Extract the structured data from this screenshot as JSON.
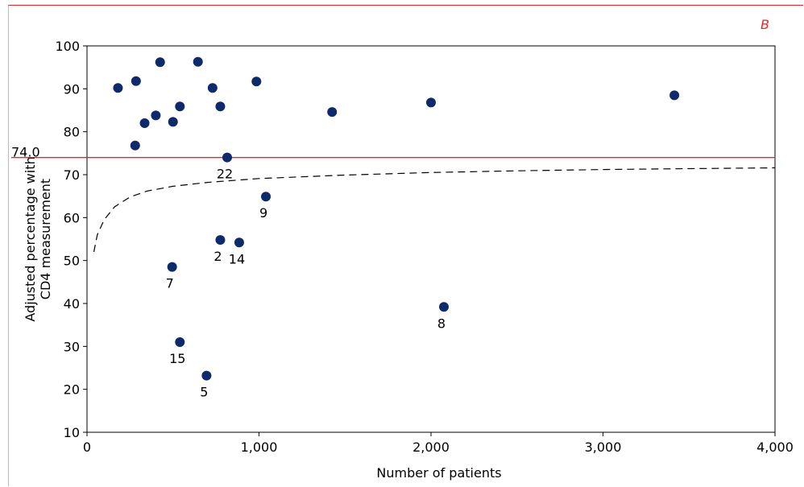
{
  "panel_label": "B",
  "chart_data": {
    "type": "scatter",
    "title": "",
    "xlabel": "Number of patients",
    "ylabel_lines": [
      "Adjusted percentage with",
      "CD4 measurement"
    ],
    "xlim": [
      0,
      4000
    ],
    "ylim": [
      10,
      100
    ],
    "x_ticks": [
      0,
      1000,
      2000,
      3000,
      4000
    ],
    "x_tick_labels": [
      "0",
      "1,000",
      "2,000",
      "3,000",
      "4,000"
    ],
    "y_ticks": [
      10,
      20,
      30,
      40,
      50,
      60,
      70,
      80,
      90,
      100
    ],
    "y_tick_labels": [
      "10",
      "20",
      "30",
      "40",
      "50",
      "60",
      "70",
      "80",
      "90",
      "100"
    ],
    "grid": false,
    "reference_line": {
      "value": 74.0,
      "label": "74.0",
      "color": "#e8262c"
    },
    "threshold_curve": {
      "style": "dashed",
      "x": [
        40,
        60,
        100,
        160,
        250,
        350,
        500,
        700,
        1000,
        1500,
        2000,
        2500,
        3000,
        3500,
        4000
      ],
      "y": [
        52,
        56,
        59.5,
        62.5,
        64.8,
        66.2,
        67.3,
        68.2,
        69.1,
        69.9,
        70.5,
        70.9,
        71.2,
        71.4,
        71.6
      ]
    },
    "point_color": "#0e2a6b",
    "points": [
      {
        "x": 180,
        "y": 90.2,
        "label": ""
      },
      {
        "x": 280,
        "y": 76.8,
        "label": ""
      },
      {
        "x": 285,
        "y": 91.8,
        "label": ""
      },
      {
        "x": 335,
        "y": 82.0,
        "label": ""
      },
      {
        "x": 400,
        "y": 83.8,
        "label": ""
      },
      {
        "x": 425,
        "y": 96.2,
        "label": ""
      },
      {
        "x": 495,
        "y": 48.5,
        "label": "7"
      },
      {
        "x": 500,
        "y": 82.3,
        "label": ""
      },
      {
        "x": 540,
        "y": 31.0,
        "label": "15"
      },
      {
        "x": 540,
        "y": 85.9,
        "label": ""
      },
      {
        "x": 645,
        "y": 96.3,
        "label": ""
      },
      {
        "x": 695,
        "y": 23.2,
        "label": "5"
      },
      {
        "x": 730,
        "y": 90.2,
        "label": ""
      },
      {
        "x": 775,
        "y": 54.8,
        "label": "2"
      },
      {
        "x": 775,
        "y": 85.9,
        "label": ""
      },
      {
        "x": 815,
        "y": 74.0,
        "label": "22"
      },
      {
        "x": 885,
        "y": 54.2,
        "label": "14"
      },
      {
        "x": 985,
        "y": 91.7,
        "label": ""
      },
      {
        "x": 1040,
        "y": 64.9,
        "label": "9"
      },
      {
        "x": 1425,
        "y": 84.6,
        "label": ""
      },
      {
        "x": 2000,
        "y": 86.8,
        "label": ""
      },
      {
        "x": 2075,
        "y": 39.2,
        "label": "8"
      },
      {
        "x": 3415,
        "y": 88.5,
        "label": ""
      }
    ]
  }
}
